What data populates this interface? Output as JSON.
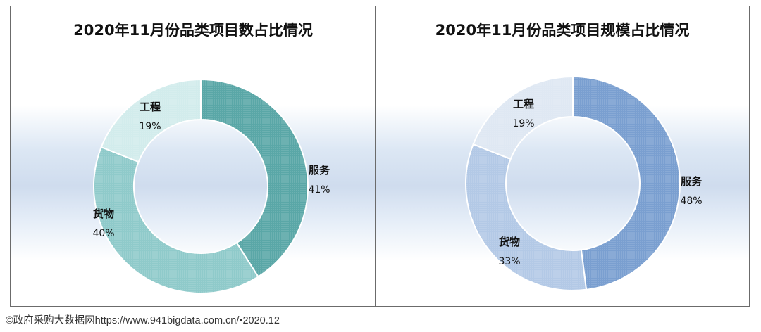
{
  "chart_data": [
    {
      "type": "pie",
      "title": "2020年11月份品类项目数占比情况",
      "categories": [
        "服务",
        "货物",
        "工程"
      ],
      "values": [
        41,
        40,
        19
      ],
      "value_labels": [
        "41%",
        "40%",
        "19%"
      ],
      "colors": [
        "#5aa7a7",
        "#8fcaca",
        "#d2ecec"
      ]
    },
    {
      "type": "pie",
      "title": "2020年11月份品类项目规模占比情况",
      "categories": [
        "服务",
        "货物",
        "工程"
      ],
      "values": [
        48,
        33,
        19
      ],
      "value_labels": [
        "48%",
        "33%",
        "19%"
      ],
      "colors": [
        "#7a9fd0",
        "#b3c9e6",
        "#dfe8f3"
      ]
    }
  ],
  "footer": "©政府采购大数据网https://www.941bigdata.com.cn/•2020.12"
}
